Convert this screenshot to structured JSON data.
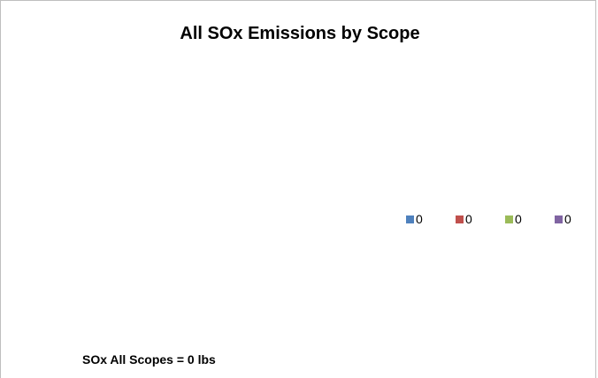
{
  "chart_data": {
    "type": "pie",
    "title": "All SOx Emissions by Scope",
    "categories": [
      "0",
      "0",
      "0",
      "0"
    ],
    "values": [
      0,
      0,
      0,
      0
    ],
    "colors": [
      "#4f81bd",
      "#c0504d",
      "#9bbb59",
      "#8064a2"
    ],
    "legend_position": "right",
    "annotation": "SOx All Scopes = 0 lbs"
  }
}
